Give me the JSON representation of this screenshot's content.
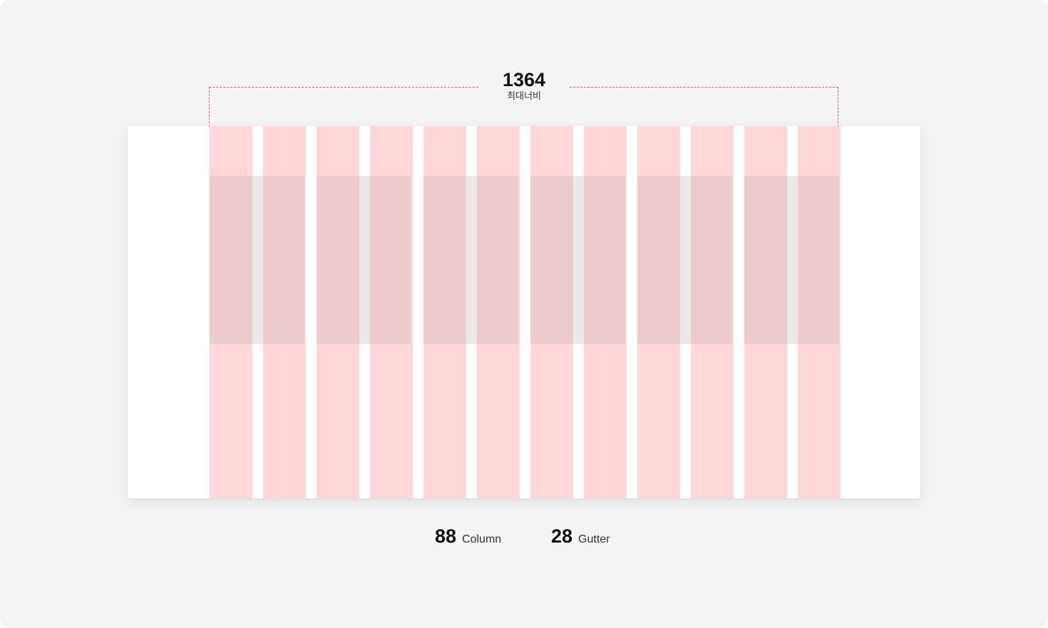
{
  "max_width": {
    "value": "1364",
    "label": "최대너비"
  },
  "grid": {
    "column_count": 12,
    "column_width": 88,
    "gutter_width": 28,
    "span_groups": 6
  },
  "specs": [
    {
      "number": "88",
      "label": "Column"
    },
    {
      "number": "28",
      "label": "Gutter"
    }
  ],
  "colors": {
    "background": "#f4f4f6",
    "canvas": "#ffffff",
    "column": "#ffd7d9",
    "content_overlay": "#bfaaaa",
    "dimension_line": "#e25c5c"
  }
}
